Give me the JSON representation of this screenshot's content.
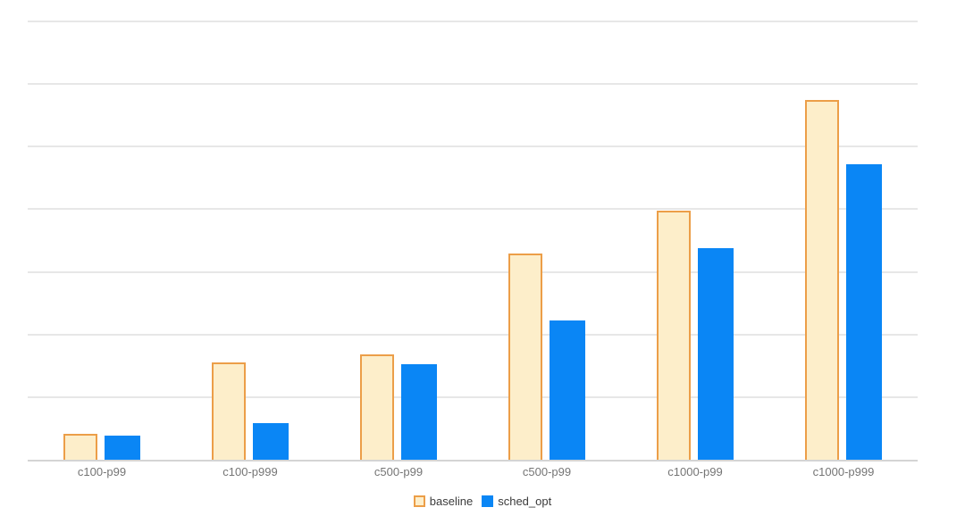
{
  "chart_data": {
    "type": "bar",
    "title": "",
    "xlabel": "",
    "ylabel": "",
    "categories": [
      "c100-p99",
      "c100-p999",
      "c500-p99",
      "c500-p99",
      "c1000-p99",
      "c1000-p999"
    ],
    "series": [
      {
        "name": "baseline",
        "values": [
          0.41,
          1.55,
          1.68,
          3.29,
          3.98,
          5.74
        ],
        "fill": "#fdeeca",
        "stroke": "#ec9e48"
      },
      {
        "name": "sched_opt",
        "values": [
          0.39,
          0.58,
          1.53,
          2.22,
          3.38,
          4.72
        ],
        "fill": "#0a86f5",
        "stroke": "#0a86f5"
      }
    ],
    "ylim": [
      0,
      7
    ],
    "y_gridline_interval": 1,
    "y_axis_tick_labels_visible": false,
    "grid": true,
    "legend_position": "bottom"
  },
  "legend": {
    "items": [
      {
        "label": "baseline",
        "swatch_style": "outlined"
      },
      {
        "label": "sched_opt",
        "swatch_style": "solid"
      }
    ]
  },
  "colors": {
    "background": "#ffffff",
    "gridline": "#e7e7e7",
    "axis_line": "#d4d4d4",
    "x_label_text": "#757575",
    "legend_text": "#3b3b3b",
    "baseline_fill": "#fdeeca",
    "baseline_stroke": "#ec9e48",
    "sched_opt_blue": "#0a86f5"
  }
}
